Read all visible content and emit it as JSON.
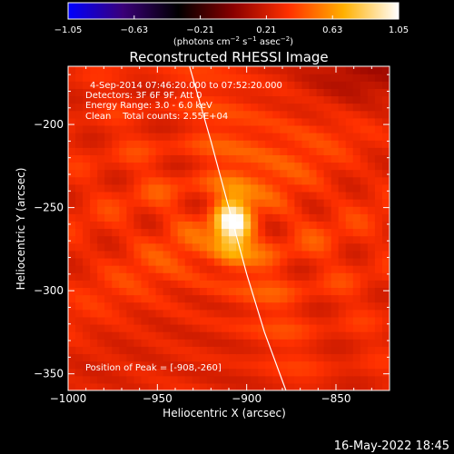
{
  "chart_data": {
    "type": "heatmap",
    "title": "Reconstructed RHESSI Image",
    "xlabel": "Heliocentric X (arcsec)",
    "ylabel": "Heliocentric Y (arcsec)",
    "xlim": [
      -1000,
      -820
    ],
    "ylim": [
      -360,
      -165
    ],
    "x_ticks": [
      -1000,
      -950,
      -900,
      -850
    ],
    "y_ticks": [
      -200,
      -250,
      -300,
      -350
    ],
    "x_tick_labels": [
      "−1000",
      "−950",
      "−900",
      "−850"
    ],
    "y_tick_labels": [
      "−200",
      "−250",
      "−300",
      "−350"
    ],
    "grid": false,
    "colorbar": {
      "min": -1.05,
      "max": 1.05,
      "ticks": [
        -1.05,
        -0.63,
        -0.21,
        0.21,
        0.63,
        1.05
      ],
      "tick_labels": [
        "−1.05",
        "−0.63",
        "−0.21",
        "0.21",
        "0.63",
        "1.05"
      ],
      "unit_label_parts": [
        "(photons cm",
        "−2",
        " s",
        "−1",
        " asec",
        "−2",
        ")"
      ],
      "colors": [
        "#0000ff",
        "#3a0078",
        "#000000",
        "#8a0000",
        "#ff3000",
        "#ffb000",
        "#ffffff"
      ]
    },
    "peak": {
      "x": -908,
      "y": -260,
      "value": 1.05
    },
    "limb_arc": [
      [
        -932,
        -165
      ],
      [
        -920,
        -210
      ],
      [
        -910,
        -250
      ],
      [
        -900,
        -290
      ],
      [
        -890,
        -325
      ],
      [
        -878,
        -360
      ]
    ],
    "background_level": 0.38
  },
  "annotations": {
    "lines": [
      "4-Sep-2014 07:46:20.000 to 07:52:20.000",
      "Detectors: 3F 6F 9F, Att 0",
      "Energy Range: 3.0 - 6.0 keV",
      "Clean    Total counts: 2.55E+04"
    ],
    "peak_text": "Position of Peak = [-908,-260]"
  },
  "footer": {
    "timestamp": "16-May-2022 18:45"
  }
}
